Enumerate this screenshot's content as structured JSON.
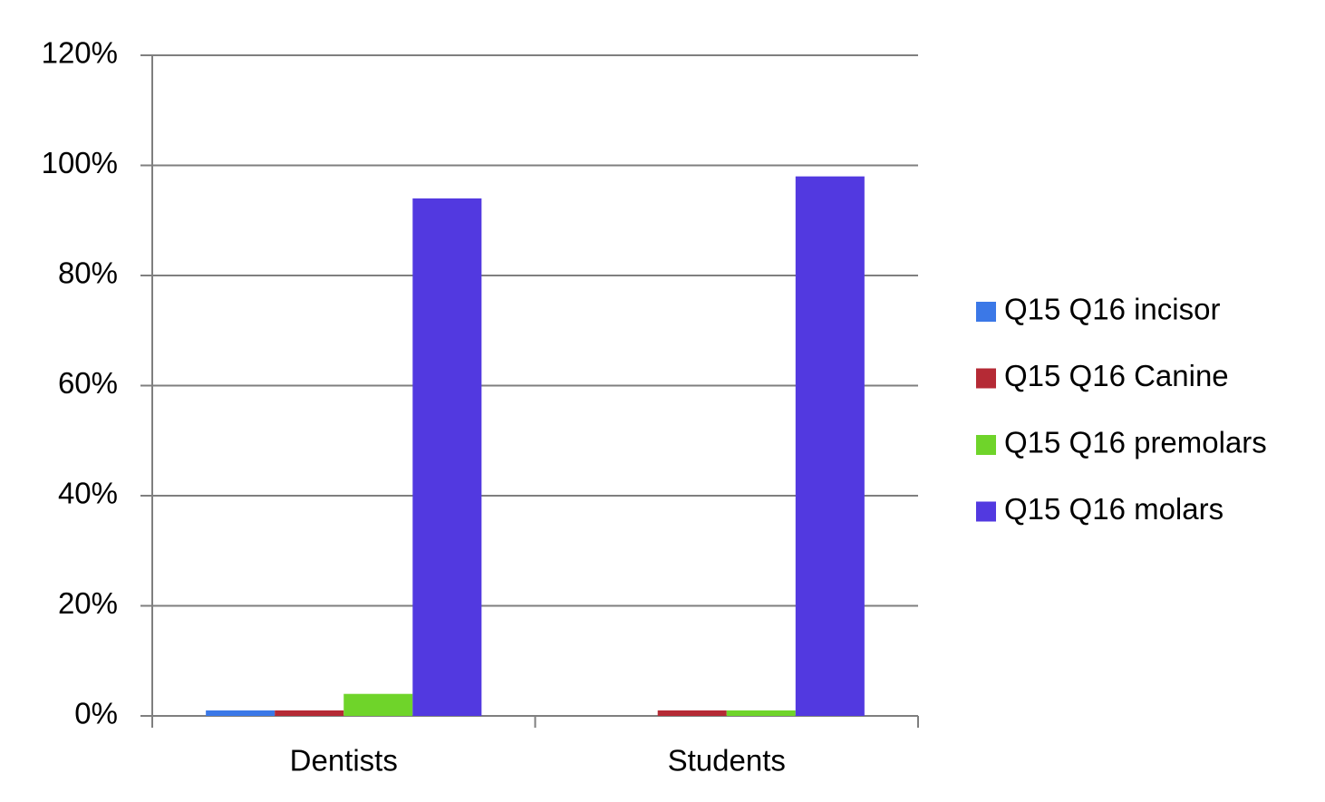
{
  "chart_data": {
    "type": "bar",
    "categories": [
      "Dentists",
      "Students"
    ],
    "series": [
      {
        "name": "Q15 Q16 incisor",
        "color": "#3b78e7",
        "values": [
          1,
          0
        ]
      },
      {
        "name": "Q15 Q16 Canine",
        "color": "#b52a35",
        "values": [
          1,
          1
        ]
      },
      {
        "name": "Q15 Q16 premolars",
        "color": "#6fd42a",
        "values": [
          4,
          1
        ]
      },
      {
        "name": "Q15 Q16 molars",
        "color": "#5239e0",
        "values": [
          94,
          98
        ]
      }
    ],
    "ylim": [
      0,
      120
    ],
    "yticks": [
      {
        "value": 0,
        "label": "0%"
      },
      {
        "value": 20,
        "label": "20%"
      },
      {
        "value": 40,
        "label": "40%"
      },
      {
        "value": 60,
        "label": "60%"
      },
      {
        "value": 80,
        "label": "80%"
      },
      {
        "value": 100,
        "label": "100%"
      },
      {
        "value": 120,
        "label": "120%"
      }
    ],
    "grid": true,
    "legend": "right"
  }
}
